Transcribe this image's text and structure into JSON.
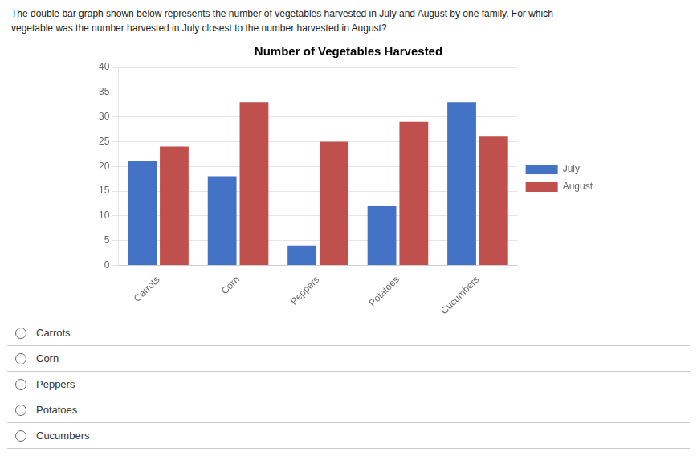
{
  "chart_data": {
    "type": "bar",
    "title": "Number of Vegetables Harvested",
    "categories": [
      "Carrots",
      "Corn",
      "Peppers",
      "Potatoes",
      "Cucumbers"
    ],
    "series": [
      {
        "name": "July",
        "color": "#4472c4",
        "values": [
          21,
          18,
          4,
          12,
          33
        ]
      },
      {
        "name": "August",
        "color": "#c0504d",
        "values": [
          24,
          33,
          25,
          29,
          26
        ]
      }
    ],
    "ylim": [
      0,
      40
    ],
    "yticks": [
      0,
      5,
      10,
      15,
      20,
      25,
      30,
      35,
      40
    ],
    "grid": true,
    "legend": "right",
    "annotations": [
      "The double bar graph shown below represents the number of vegetables harvested in July and August by one family. For which\nvegetable was the number harvested in July closest to the number harvested in August?",
      "Carrots",
      "Corn",
      "Peppers",
      "Potatoes",
      "Cucumbers"
    ]
  }
}
